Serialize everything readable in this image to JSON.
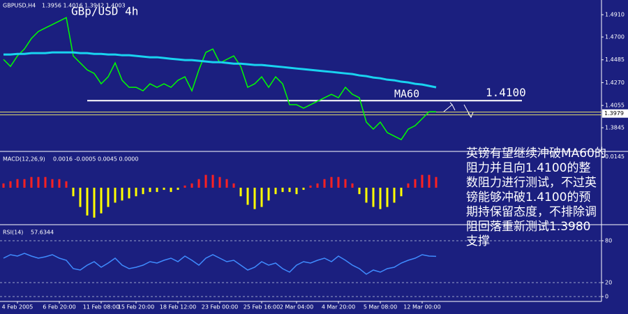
{
  "chart_data": [
    {
      "type": "line",
      "title": "GBp/USD 4h",
      "ohlc": "1.3956 1.4016 1.3942 1.4003",
      "categories": [
        null,
        null,
        "4 Feb 2005",
        null,
        null,
        null,
        null,
        null,
        "6 Feb 20:00",
        null,
        null,
        null,
        null,
        null,
        "11 Feb 08:00",
        null,
        null,
        null,
        null,
        "15 Feb 20:00",
        null,
        null,
        null,
        null,
        null,
        "18 Feb 12:00",
        null,
        null,
        null,
        null,
        null,
        "23 Feb 00:00",
        null,
        null,
        null,
        null,
        null,
        "25 Feb 16:00",
        null,
        null,
        null,
        null,
        "2 Mar 04:00",
        null,
        null,
        null,
        null,
        null,
        "4 Mar 20:00",
        null,
        null,
        null,
        null,
        null,
        "5 Mar 08:00",
        null,
        null,
        null,
        null,
        null,
        "12 Mar 00:00",
        null,
        null
      ],
      "series": [
        {
          "name": "GBPUSD,H4",
          "color": "#00ff00",
          "values": [
            1.4489,
            1.4423,
            1.4522,
            1.4587,
            1.4686,
            1.4752,
            1.4785,
            1.4817,
            1.485,
            1.4883,
            1.4522,
            1.4456,
            1.439,
            1.4357,
            1.4259,
            1.4325,
            1.4456,
            1.4292,
            1.4226,
            1.4226,
            1.4193,
            1.4259,
            1.4226,
            1.4259,
            1.4226,
            1.4292,
            1.4325,
            1.4193,
            1.439,
            1.4555,
            1.4587,
            1.4456,
            1.4489,
            1.4522,
            1.4423,
            1.4226,
            1.4259,
            1.4325,
            1.4226,
            1.4325,
            1.4259,
            1.4062,
            1.4062,
            1.4029,
            1.4062,
            1.4095,
            1.4128,
            1.416,
            1.4128,
            1.4226,
            1.416,
            1.4128,
            1.3898,
            1.3832,
            1.3898,
            1.3799,
            1.3766,
            1.3733,
            1.3832,
            1.3865,
            1.393,
            1.3996,
            1.3996
          ]
        },
        {
          "name": "MA60",
          "color": "#19d3f0",
          "values": [
            1.4535,
            1.4535,
            1.4541,
            1.4541,
            1.4548,
            1.4548,
            1.4548,
            1.4555,
            1.4555,
            1.4555,
            1.4555,
            1.4548,
            1.4548,
            1.4541,
            1.4541,
            1.4535,
            1.4535,
            1.4528,
            1.4528,
            1.4522,
            1.4515,
            1.4509,
            1.4509,
            1.4502,
            1.4495,
            1.4489,
            1.4482,
            1.4482,
            1.4476,
            1.4469,
            1.4463,
            1.4463,
            1.4456,
            1.4449,
            1.4449,
            1.4443,
            1.4436,
            1.4436,
            1.443,
            1.4423,
            1.4417,
            1.441,
            1.4403,
            1.4397,
            1.439,
            1.4384,
            1.4377,
            1.4371,
            1.4364,
            1.4357,
            1.4351,
            1.4338,
            1.4331,
            1.4318,
            1.4311,
            1.4298,
            1.4292,
            1.4279,
            1.4272,
            1.4259,
            1.4252,
            1.4239,
            1.4226
          ]
        }
      ],
      "ylim": [
        1.3635,
        1.4996
      ],
      "yticks": [
        {
          "value": 1.491,
          "label": "1.4910"
        },
        {
          "value": 1.47,
          "label": "1.4700"
        },
        1.4485,
        {
          "value": 1.427,
          "label": "1.4270"
        },
        1.4055,
        1.3845
      ],
      "level": {
        "value": 1.41,
        "label": "1.4100"
      },
      "last_price": 1.3979,
      "grid": false,
      "note_lines": [
        "英镑有望继续冲破MA60的",
        "阻力并且向1.4100的整",
        "数阻力进行测试，不过英",
        "镑能够冲破1.4100的预",
        "期持保留态度，不排除调",
        "阻回落重新测试1.3980",
        "支撑"
      ]
    },
    {
      "type": "bar",
      "title": "MACD(12,26,9)",
      "readout": "0.0016 -0.0005 0.0045 0.0000",
      "color": "#ff2020",
      "negative_color": "#ffff00",
      "values": [
        0.002,
        0.003,
        0.004,
        0.004,
        0.005,
        0.005,
        0.005,
        0.004,
        0.004,
        0.003,
        -0.004,
        -0.009,
        -0.013,
        -0.014,
        -0.012,
        -0.009,
        -0.007,
        -0.006,
        -0.005,
        -0.004,
        -0.003,
        -0.002,
        -0.002,
        -0.001,
        -0.002,
        -0.001,
        0.001,
        0.002,
        0.004,
        0.006,
        0.006,
        0.005,
        0.004,
        0.002,
        -0.004,
        -0.008,
        -0.01,
        -0.009,
        -0.006,
        -0.003,
        -0.002,
        -0.002,
        -0.003,
        -0.001,
        0.001,
        0.002,
        0.004,
        0.005,
        0.005,
        0.004,
        0.002,
        -0.003,
        -0.007,
        -0.009,
        -0.01,
        -0.009,
        -0.007,
        -0.004,
        0.002,
        0.004,
        0.006,
        0.006,
        0.005
      ],
      "ylim": [
        -0.016,
        0.016
      ],
      "yticks": [
        0.0145
      ],
      "grid": false
    },
    {
      "type": "line",
      "series": [
        {
          "name": "RSI(14)",
          "color": "#3f8cff",
          "values": [
            55,
            60,
            58,
            62,
            58,
            55,
            57,
            60,
            55,
            52,
            40,
            38,
            45,
            50,
            42,
            48,
            55,
            45,
            40,
            42,
            45,
            50,
            48,
            52,
            55,
            50,
            58,
            52,
            45,
            55,
            60,
            55,
            50,
            52,
            45,
            38,
            42,
            50,
            45,
            48,
            40,
            35,
            45,
            50,
            48,
            52,
            55,
            50,
            58,
            52,
            45,
            40,
            32,
            38,
            35,
            40,
            42,
            48,
            52,
            55,
            60,
            58,
            57.6344
          ]
        }
      ],
      "ylim": [
        -5,
        100
      ],
      "yticks": [
        80,
        20,
        0
      ],
      "grid": true
    }
  ]
}
